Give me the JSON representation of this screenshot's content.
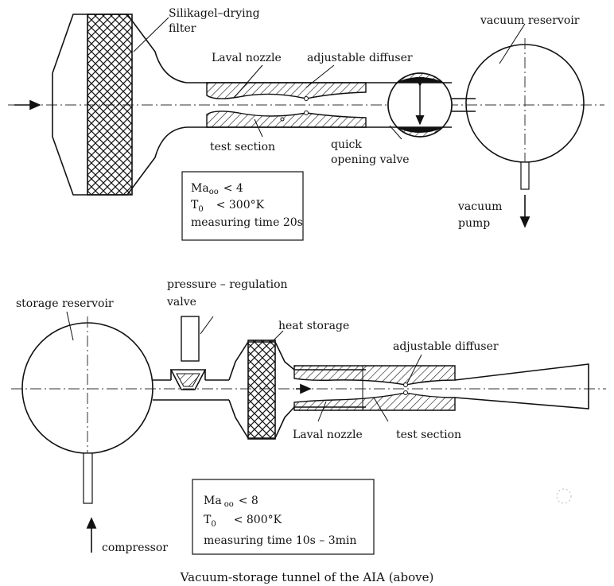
{
  "top": {
    "labels": {
      "filter": [
        "Silikagel–drying",
        "filter"
      ],
      "laval": "Laval nozzle",
      "diffuser": "adjustable diffuser",
      "reservoir": "vacuum reservoir",
      "test_section": "test section",
      "valve": [
        "quick",
        "opening valve"
      ],
      "pump": [
        "vacuum",
        "pump"
      ]
    },
    "specs": {
      "line1": {
        "sym": "Ma",
        "sub": "oo",
        "rel": "< 4"
      },
      "line2": {
        "sym": "T",
        "sub": "0",
        "rel": "< 300°K"
      },
      "line3": "measuring time 20s"
    }
  },
  "bottom": {
    "labels": {
      "prv": [
        "pressure – regulation",
        "valve"
      ],
      "storage": "storage reservoir",
      "heat": "heat storage",
      "diffuser": "adjustable diffuser",
      "laval": "Laval nozzle",
      "test_section": "test section",
      "compressor": "compressor"
    },
    "specs": {
      "line1": {
        "sym": "Ma",
        "sub": "oo",
        "rel": "< 8"
      },
      "line2": {
        "sym": "T",
        "sub": "0",
        "rel": "< 800°K"
      },
      "line3": "measuring time 10s – 3min"
    }
  },
  "caption": "Vacuum-storage tunnel of the AIA (above)"
}
